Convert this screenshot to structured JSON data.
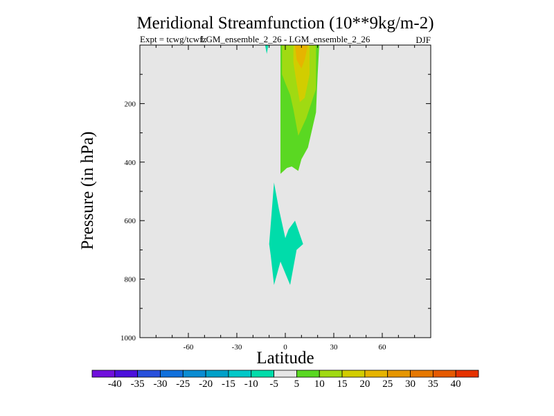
{
  "chart_data": {
    "type": "contour",
    "title": "Meridional Streamfunction (10**9kg/m-2)",
    "subtitle_left": "Expt = tcwg/tcwfz",
    "subtitle_center": "LGM_ensemble_2_26 - LGM_ensemble_2_26",
    "subtitle_right": "DJF",
    "xlabel": "Latitude",
    "ylabel": "Pressure (in hPa)",
    "xlim": [
      -90,
      90
    ],
    "ylim": [
      1000,
      0
    ],
    "xticks": [
      -60,
      -30,
      0,
      30,
      60
    ],
    "yticks": [
      200,
      400,
      600,
      800,
      1000
    ],
    "background_color": "#e6e6e6",
    "regions": [
      {
        "level": "-10 to -5",
        "color": "#00dcaa",
        "points": [
          [
            -12.5,
            0
          ],
          [
            -10.5,
            0
          ],
          [
            -11.5,
            30
          ],
          [
            -12.5,
            0
          ]
        ]
      },
      {
        "level": "5 to 10",
        "color": "#5ad822",
        "points": [
          [
            -3,
            0
          ],
          [
            21,
            0
          ],
          [
            20,
            100
          ],
          [
            19,
            230
          ],
          [
            14,
            350
          ],
          [
            10,
            390
          ],
          [
            8,
            430
          ],
          [
            4,
            415
          ],
          [
            1,
            420
          ],
          [
            -3,
            440
          ],
          [
            -3,
            200
          ],
          [
            -3,
            0
          ]
        ]
      },
      {
        "level": "10 to 15",
        "color": "#a0da12",
        "points": [
          [
            -2,
            0
          ],
          [
            19,
            0
          ],
          [
            19,
            150
          ],
          [
            13,
            250
          ],
          [
            8,
            310
          ],
          [
            5,
            220
          ],
          [
            3,
            170
          ],
          [
            0,
            130
          ],
          [
            -2,
            100
          ],
          [
            -2,
            0
          ]
        ]
      },
      {
        "level": "15 to 20",
        "color": "#d2cd00",
        "points": [
          [
            5,
            0
          ],
          [
            15,
            0
          ],
          [
            15,
            100
          ],
          [
            12,
            180
          ],
          [
            9,
            195
          ],
          [
            7,
            130
          ],
          [
            5,
            60
          ],
          [
            5,
            0
          ]
        ]
      },
      {
        "level": "20 to 25",
        "color": "#e6b400",
        "points": [
          [
            6,
            0
          ],
          [
            14,
            0
          ],
          [
            12,
            50
          ],
          [
            10,
            80
          ],
          [
            7,
            50
          ],
          [
            6,
            0
          ]
        ]
      },
      {
        "level": "-10 to -5",
        "color": "#00dcaa",
        "points": [
          [
            -7,
            470
          ],
          [
            -4,
            560
          ],
          [
            0,
            660
          ],
          [
            2,
            630
          ],
          [
            6,
            600
          ],
          [
            11,
            680
          ],
          [
            7,
            700
          ],
          [
            3,
            820
          ],
          [
            0,
            780
          ],
          [
            -3,
            740
          ],
          [
            -7,
            820
          ],
          [
            -9,
            720
          ],
          [
            -10,
            680
          ],
          [
            -7,
            470
          ]
        ]
      }
    ],
    "colorbar": {
      "labels": [
        "-40",
        "-35",
        "-30",
        "-25",
        "-20",
        "-15",
        "-10",
        "-5",
        "5",
        "10",
        "15",
        "20",
        "25",
        "30",
        "35",
        "40"
      ],
      "colors": [
        "#7010dc",
        "#4c10dc",
        "#2850dc",
        "#1070dc",
        "#0a8cd2",
        "#00a0c8",
        "#00c8c8",
        "#00dcaa",
        "#e6e6e6",
        "#5ad822",
        "#a0da12",
        "#d2cd00",
        "#e6b400",
        "#e69600",
        "#e67800",
        "#e65a00",
        "#e63200"
      ]
    }
  }
}
